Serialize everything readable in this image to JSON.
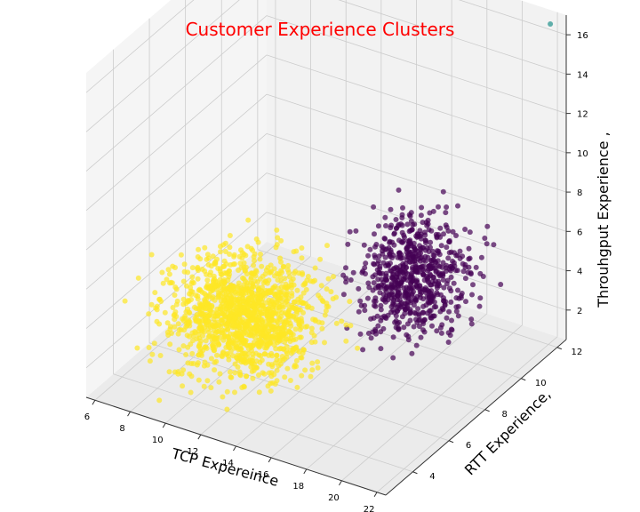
{
  "chart_data": {
    "type": "scatter3d",
    "title": "Customer Experience Clusters",
    "title_color": "#ff0000",
    "xlabel": "TCP Expereince",
    "ylabel": "RTT Experience,",
    "zlabel": "Throuhgput Experience ,",
    "xlim": [
      5.5,
      22.5
    ],
    "ylim": [
      2.5,
      12.5
    ],
    "zlim": [
      0.5,
      17.0
    ],
    "xticks": [
      "6",
      "8",
      "10",
      "12",
      "14",
      "16",
      "18",
      "20",
      "22"
    ],
    "yticks": [
      "4",
      "6",
      "8",
      "10",
      "12"
    ],
    "zticks": [
      "2",
      "4",
      "6",
      "8",
      "10",
      "12",
      "14",
      "16"
    ],
    "grid": true,
    "legend": "none",
    "pane_color": "#f2f2f2",
    "grid_color": "#cccccc",
    "clusters": [
      {
        "color": "#fde725",
        "point_count_hint": 1400,
        "x_range": [
          6.0,
          17.5
        ],
        "y_range": [
          3.0,
          9.5
        ],
        "z_range": [
          1.0,
          8.5
        ],
        "approx_center": [
          11.5,
          5.5,
          4.0
        ]
      },
      {
        "color": "#440154",
        "point_count_hint": 700,
        "x_range": [
          14.0,
          21.5
        ],
        "y_range": [
          6.0,
          12.0
        ],
        "z_range": [
          1.5,
          9.5
        ],
        "approx_center": [
          17.5,
          9.0,
          5.0
        ]
      },
      {
        "color": "#21918c",
        "point_count_hint": 1,
        "points": [
          [
            21.8,
            12.3,
            16.5
          ]
        ]
      }
    ]
  }
}
